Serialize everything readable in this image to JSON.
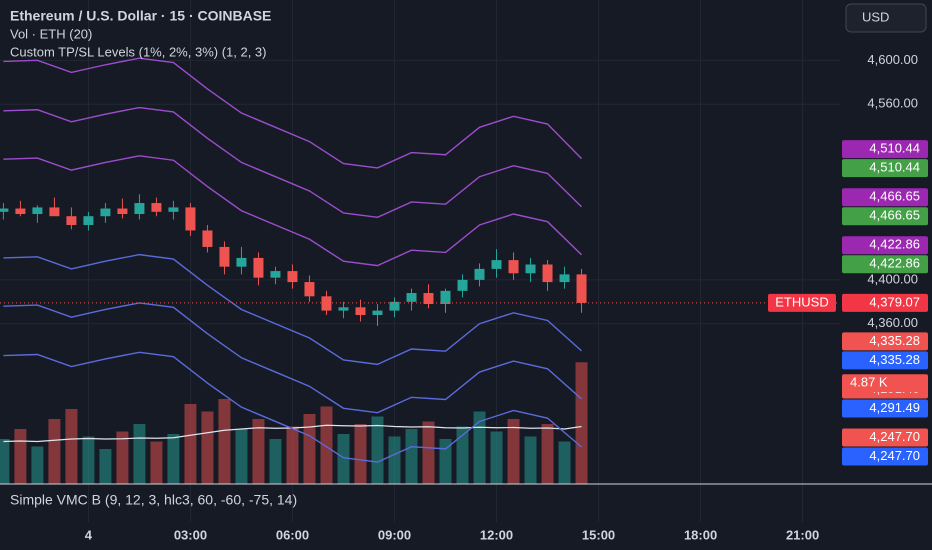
{
  "chart_data": {
    "type": "candlestick",
    "title": "Ethereum / U.S. Dollar · 15 · COINBASE",
    "volume_title": "Vol · ETH (20)",
    "indicator_title": "Custom TP/SL Levels (1%, 2%, 3%) (1, 2, 3)",
    "lower_pane_title": "Simple VMC B (9, 12, 3, hlc3, 60, -60, -75, 14)",
    "currency": "USD",
    "up_color": "#26a69a",
    "down_color": "#ef5350",
    "xlim": [
      -2.6,
      22.1
    ],
    "xticks": [
      {
        "value": 0,
        "label": "4"
      },
      {
        "value": 3,
        "label": "03:00"
      },
      {
        "value": 6,
        "label": "06:00"
      },
      {
        "value": 9,
        "label": "09:00"
      },
      {
        "value": 12,
        "label": "12:00"
      },
      {
        "value": 15,
        "label": "15:00"
      },
      {
        "value": 18,
        "label": "18:00"
      },
      {
        "value": 21,
        "label": "21:00"
      }
    ],
    "ylim": [
      4214,
      4655
    ],
    "yticks": [
      {
        "value": 4360,
        "label": "4,360.00"
      },
      {
        "value": 4400,
        "label": "4,400.00"
      },
      {
        "value": 4560,
        "label": "4,560.00"
      },
      {
        "value": 4600,
        "label": "4,600.00"
      }
    ],
    "grid": true,
    "candles": {
      "x": [
        -2.5,
        -2,
        -1.5,
        -1,
        -0.5,
        0,
        0.5,
        1,
        1.5,
        2,
        2.5,
        3,
        3.5,
        4,
        4.5,
        5,
        5.5,
        6,
        6.5,
        7,
        7.5,
        8,
        8.5,
        9,
        9.5,
        10,
        10.5,
        11,
        11.5,
        12,
        12.5,
        13,
        13.5,
        14,
        14.5
      ],
      "open": [
        4462,
        4465,
        4460,
        4466,
        4458,
        4450,
        4458,
        4465,
        4460,
        4470,
        4462,
        4466,
        4445,
        4430,
        4412,
        4420,
        4402,
        4408,
        4398,
        4385,
        4372,
        4375,
        4368,
        4372,
        4380,
        4388,
        4378,
        4390,
        4400,
        4410,
        4418,
        4406,
        4414,
        4398,
        4405
      ],
      "high": [
        4470,
        4472,
        4468,
        4475,
        4466,
        4462,
        4470,
        4474,
        4478,
        4475,
        4472,
        4470,
        4450,
        4435,
        4430,
        4425,
        4412,
        4414,
        4404,
        4390,
        4380,
        4382,
        4378,
        4384,
        4392,
        4396,
        4392,
        4405,
        4415,
        4428,
        4425,
        4420,
        4418,
        4412,
        4410
      ],
      "low": [
        4455,
        4458,
        4452,
        4460,
        4446,
        4445,
        4452,
        4456,
        4455,
        4458,
        4455,
        4440,
        4425,
        4405,
        4405,
        4395,
        4396,
        4392,
        4380,
        4368,
        4365,
        4362,
        4358,
        4366,
        4372,
        4374,
        4370,
        4384,
        4394,
        4402,
        4400,
        4398,
        4390,
        4392,
        4370
      ],
      "close": [
        4465,
        4460,
        4466,
        4458,
        4450,
        4458,
        4465,
        4460,
        4470,
        4462,
        4466,
        4445,
        4430,
        4412,
        4420,
        4402,
        4408,
        4398,
        4385,
        4372,
        4375,
        4368,
        4372,
        4380,
        4388,
        4378,
        4390,
        4400,
        4410,
        4418,
        4406,
        4414,
        4398,
        4405,
        4379
      ],
      "volume": [
        1800,
        2200,
        1500,
        2600,
        3000,
        1900,
        1400,
        2100,
        2400,
        1700,
        2000,
        3200,
        2900,
        3400,
        2200,
        2600,
        1800,
        2300,
        2800,
        3100,
        2000,
        2400,
        2700,
        1900,
        2200,
        2500,
        1800,
        2300,
        2900,
        2100,
        2600,
        1900,
        2400,
        1700,
        4870
      ],
      "volume_ma": [
        1700,
        1720,
        1700,
        1750,
        1800,
        1820,
        1800,
        1810,
        1840,
        1830,
        1850,
        1950,
        2050,
        2150,
        2200,
        2250,
        2230,
        2240,
        2280,
        2350,
        2330,
        2320,
        2340,
        2300,
        2280,
        2290,
        2250,
        2240,
        2270,
        2250,
        2260,
        2230,
        2240,
        2200,
        2300
      ]
    },
    "vlim": [
      0,
      10000
    ],
    "lines_x": [
      -2.5,
      -1.5,
      -0.5,
      0.5,
      1.5,
      2.5,
      3.5,
      4.5,
      5.5,
      6.5,
      7.5,
      8.5,
      9.5,
      10.5,
      11.5,
      12.5,
      13.5,
      14.5
    ],
    "lines": [
      {
        "color": "#9c4dcc",
        "values": [
          4599,
          4600,
          4589,
          4596,
          4602,
          4598,
          4574,
          4552,
          4539,
          4526,
          4506,
          4502,
          4516,
          4514,
          4539,
          4549,
          4542,
          4510.44
        ]
      },
      {
        "color": "#9c4dcc",
        "values": [
          4554,
          4555,
          4544,
          4551,
          4557,
          4553,
          4529,
          4507,
          4494,
          4481,
          4461,
          4457,
          4471,
          4469,
          4494,
          4504,
          4497,
          4466.65
        ]
      },
      {
        "color": "#9c4dcc",
        "values": [
          4510,
          4511,
          4500,
          4507,
          4513,
          4509,
          4485,
          4463,
          4450,
          4437,
          4417,
          4413,
          4427,
          4425,
          4450,
          4460,
          4453,
          4422.86
        ]
      },
      {
        "color": "#5b6bdc",
        "values": [
          4420,
          4421,
          4410,
          4417,
          4423,
          4419,
          4395,
          4373,
          4360,
          4347,
          4327,
          4323,
          4337,
          4335,
          4360,
          4370,
          4363,
          4335.28
        ]
      },
      {
        "color": "#5b6bdc",
        "values": [
          4376,
          4377,
          4366,
          4373,
          4379,
          4375,
          4351,
          4329,
          4316,
          4303,
          4283,
          4279,
          4293,
          4291,
          4316,
          4326,
          4319,
          4291.49
        ]
      },
      {
        "color": "#5b6bdc",
        "values": [
          4331,
          4332,
          4321,
          4328,
          4334,
          4330,
          4306,
          4284,
          4271,
          4258,
          4238,
          4234,
          4248,
          4246,
          4271,
          4281,
          4274,
          4247.7
        ]
      }
    ],
    "price_tags": [
      {
        "value": 4510.44,
        "label": "4,510.44",
        "color": "#9c27b0",
        "pair_color": "#43a047"
      },
      {
        "value": 4466.65,
        "label": "4,466.65",
        "color": "#9c27b0",
        "pair_color": "#43a047"
      },
      {
        "value": 4422.86,
        "label": "4,422.86",
        "color": "#9c27b0",
        "pair_color": "#43a047"
      },
      {
        "value": 4335.28,
        "label": "4,335.28",
        "color": "#f05350",
        "pair_color": "#2962ff"
      },
      {
        "value": 4291.49,
        "label": "4,291.49",
        "color": "#f05350",
        "pair_color": "#2962ff"
      },
      {
        "value": 4247.7,
        "label": "4,247.70",
        "color": "#f05350",
        "pair_color": "#2962ff"
      }
    ],
    "last_price": {
      "name": "ETHUSD",
      "value": 4379.07,
      "label": "4,379.07"
    },
    "volume_tag": {
      "value": 4870,
      "label": "4.87 K"
    }
  }
}
